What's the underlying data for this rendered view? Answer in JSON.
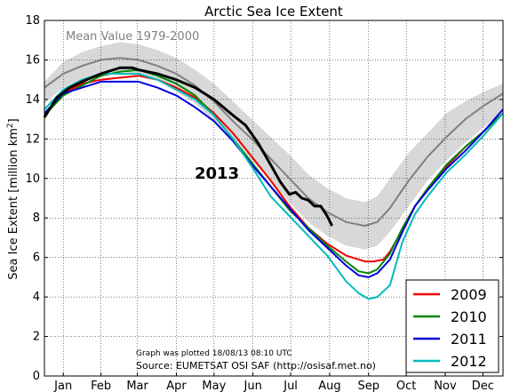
{
  "chart_data": {
    "type": "line",
    "title": "Arctic Sea Ice Extent",
    "xlabel": "",
    "ylabel": "Sea Ice Extent [million km",
    "ylabel_sup": "2",
    "ylabel_end": "]",
    "ylim": [
      0,
      18
    ],
    "yticks": [
      "0",
      "2",
      "4",
      "6",
      "8",
      "10",
      "12",
      "14",
      "16",
      "18"
    ],
    "xlim": [
      0,
      365
    ],
    "months": [
      "Jan",
      "Feb",
      "Mar",
      "Apr",
      "May",
      "Jun",
      "Jul",
      "Aug",
      "Sep",
      "Oct",
      "Nov",
      "Dec"
    ],
    "month_centers": [
      15,
      45,
      74,
      105,
      135,
      166,
      196,
      227,
      258,
      288,
      319,
      349
    ],
    "grid": true,
    "legend_position": "bottom-right",
    "mean_label": "Mean Value 1979-2000",
    "annotation_2013": "2013",
    "footnote": "Graph was plotted 18/08/13 08:10 UTC",
    "source": "Source: EUMETSAT OSI SAF (http://osisaf.met.no)",
    "mean": {
      "color": "#808080",
      "x": [
        0,
        15,
        30,
        45,
        60,
        75,
        90,
        105,
        120,
        135,
        150,
        165,
        180,
        195,
        210,
        225,
        240,
        255,
        265,
        275,
        290,
        305,
        320,
        335,
        350,
        365
      ],
      "y": [
        14.6,
        15.3,
        15.7,
        16.0,
        16.1,
        16.0,
        15.7,
        15.3,
        14.7,
        13.9,
        12.9,
        12.0,
        11.0,
        10.0,
        9.0,
        8.3,
        7.8,
        7.6,
        7.8,
        8.5,
        9.9,
        11.1,
        12.1,
        13.0,
        13.7,
        14.3
      ]
    },
    "range_band": {
      "color": "#d8d8d8",
      "x": [
        0,
        15,
        30,
        45,
        60,
        75,
        90,
        105,
        120,
        135,
        150,
        165,
        180,
        195,
        210,
        225,
        240,
        255,
        265,
        275,
        290,
        305,
        320,
        335,
        350,
        365
      ],
      "upper": [
        14.9,
        15.9,
        16.4,
        16.7,
        16.9,
        16.8,
        16.5,
        16.1,
        15.5,
        14.8,
        13.9,
        13.0,
        12.1,
        11.2,
        10.2,
        9.5,
        9.0,
        8.8,
        9.1,
        10.0,
        11.3,
        12.3,
        13.3,
        13.9,
        14.4,
        14.8
      ],
      "lower": [
        13.8,
        14.6,
        15.0,
        15.3,
        15.4,
        15.3,
        15.0,
        14.4,
        13.8,
        12.9,
        11.9,
        10.9,
        9.9,
        8.8,
        7.8,
        7.1,
        6.6,
        6.4,
        6.6,
        7.3,
        8.6,
        9.9,
        10.9,
        11.8,
        12.6,
        13.4
      ]
    },
    "series": [
      {
        "name": "2009",
        "color": "#ee0000",
        "x": [
          0,
          15,
          30,
          45,
          60,
          75,
          90,
          105,
          120,
          135,
          150,
          165,
          180,
          195,
          210,
          225,
          240,
          255,
          262,
          270,
          275,
          285,
          295,
          305,
          320,
          335,
          350,
          365
        ],
        "y": [
          13.3,
          14.3,
          14.8,
          15.0,
          15.1,
          15.2,
          15.0,
          14.6,
          14.1,
          13.3,
          12.3,
          11.1,
          9.9,
          8.6,
          7.5,
          6.7,
          6.1,
          5.8,
          5.8,
          5.9,
          6.3,
          7.4,
          8.6,
          9.5,
          10.6,
          11.6,
          12.4,
          13.3
        ]
      },
      {
        "name": "2010",
        "color": "#008800",
        "x": [
          0,
          15,
          30,
          45,
          60,
          75,
          90,
          105,
          120,
          135,
          150,
          165,
          180,
          195,
          210,
          225,
          240,
          250,
          258,
          265,
          275,
          285,
          295,
          305,
          320,
          335,
          350,
          365
        ],
        "y": [
          13.2,
          14.2,
          14.7,
          15.2,
          15.4,
          15.5,
          15.2,
          14.8,
          14.2,
          13.2,
          12.0,
          10.8,
          9.6,
          8.4,
          7.5,
          6.6,
          5.8,
          5.3,
          5.2,
          5.4,
          6.2,
          7.5,
          8.6,
          9.5,
          10.7,
          11.6,
          12.4,
          13.3
        ]
      },
      {
        "name": "2011",
        "color": "#0000dd",
        "x": [
          0,
          15,
          30,
          45,
          60,
          75,
          90,
          105,
          120,
          135,
          150,
          165,
          180,
          195,
          210,
          225,
          240,
          250,
          258,
          265,
          275,
          285,
          295,
          305,
          320,
          335,
          350,
          365
        ],
        "y": [
          13.3,
          14.3,
          14.6,
          14.9,
          14.9,
          14.9,
          14.6,
          14.2,
          13.6,
          12.9,
          11.9,
          10.7,
          9.6,
          8.5,
          7.4,
          6.5,
          5.6,
          5.1,
          5.0,
          5.2,
          5.9,
          7.3,
          8.6,
          9.4,
          10.5,
          11.4,
          12.4,
          13.5
        ]
      },
      {
        "name": "2012",
        "color": "#00bbbb",
        "x": [
          0,
          15,
          30,
          45,
          60,
          75,
          90,
          105,
          120,
          135,
          150,
          165,
          180,
          195,
          210,
          225,
          240,
          250,
          258,
          265,
          275,
          285,
          295,
          305,
          320,
          335,
          350,
          365
        ],
        "y": [
          13.5,
          14.5,
          15.0,
          15.3,
          15.3,
          15.3,
          15.0,
          14.5,
          14.0,
          13.2,
          12.0,
          10.6,
          9.1,
          8.1,
          7.1,
          6.1,
          4.8,
          4.2,
          3.9,
          4.0,
          4.6,
          6.8,
          8.2,
          9.1,
          10.3,
          11.2,
          12.2,
          13.3
        ]
      },
      {
        "name": "2013",
        "color": "#000000",
        "x": [
          0,
          10,
          20,
          30,
          45,
          60,
          70,
          75,
          90,
          105,
          120,
          135,
          150,
          160,
          170,
          180,
          188,
          195,
          200,
          205,
          210,
          215,
          220,
          225,
          229
        ],
        "y": [
          13.1,
          14.1,
          14.6,
          14.9,
          15.3,
          15.6,
          15.6,
          15.5,
          15.3,
          15.0,
          14.6,
          14.0,
          13.2,
          12.7,
          11.8,
          10.7,
          9.8,
          9.2,
          9.3,
          9.0,
          8.9,
          8.6,
          8.6,
          8.1,
          7.6
        ]
      }
    ]
  }
}
